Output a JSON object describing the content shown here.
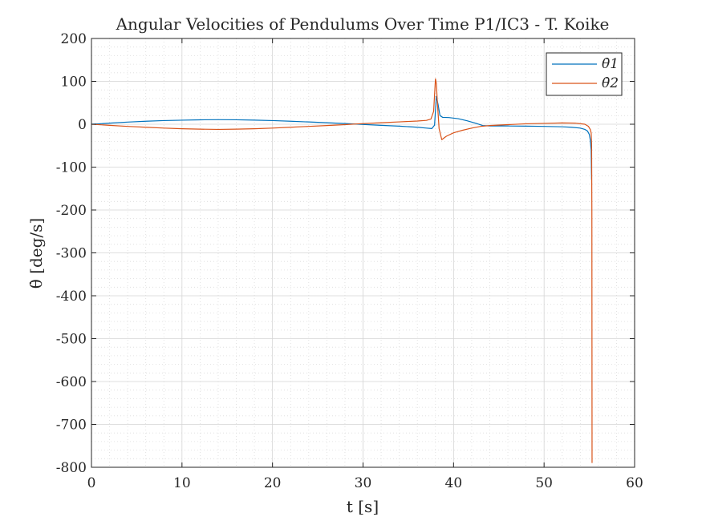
{
  "chart_data": {
    "type": "line",
    "title": "Angular Velocities of Pendulums Over Time P1/IC3 - T. Koike",
    "xlabel": "t [s]",
    "ylabel": "θ̇ [deg/s]",
    "xlim": [
      0,
      60
    ],
    "ylim": [
      -800,
      200
    ],
    "xticks": [
      0,
      10,
      20,
      30,
      40,
      50,
      60
    ],
    "yticks": [
      200,
      100,
      0,
      -100,
      -200,
      -300,
      -400,
      -500,
      -600,
      -700,
      -800
    ],
    "grid": "major and minor",
    "legend_position": "top-right",
    "series": [
      {
        "name": "θ̇1",
        "color": "#0072BD",
        "x": [
          0,
          2,
          4,
          6,
          8,
          10,
          12,
          14,
          16,
          18,
          20,
          22,
          24,
          26,
          28,
          30,
          32,
          34,
          36,
          37,
          37.6,
          37.9,
          38.1,
          38.3,
          38.5,
          38.8,
          39.5,
          40.5,
          41.5,
          42.5,
          43.2,
          44,
          46,
          48,
          50,
          52,
          53,
          54,
          54.5,
          54.8,
          55,
          55.1,
          55.2,
          55.25
        ],
        "y": [
          0,
          2.5,
          5,
          7,
          8.5,
          9.5,
          10.3,
          10.6,
          10.4,
          9.6,
          8.5,
          7,
          5.3,
          3.5,
          1.6,
          -0.5,
          -2.5,
          -4.5,
          -7,
          -9,
          -10,
          -2,
          65,
          45,
          20,
          16,
          15.5,
          13,
          8,
          2,
          -3,
          -4,
          -4,
          -4.5,
          -5,
          -6,
          -7,
          -9,
          -12,
          -16,
          -24,
          -36,
          -60,
          -130
        ]
      },
      {
        "name": "θ̇2",
        "color": "#D95319",
        "x": [
          0,
          2,
          4,
          6,
          8,
          10,
          12,
          14,
          16,
          18,
          20,
          22,
          24,
          26,
          28,
          30,
          32,
          34,
          36,
          37,
          37.5,
          37.8,
          38.0,
          38.1,
          38.2,
          38.4,
          38.7,
          39.2,
          40,
          41,
          42,
          43,
          44,
          46,
          48,
          50,
          52,
          53.5,
          54.5,
          54.9,
          55.1,
          55.2,
          55.25,
          55.28,
          55.3
        ],
        "y": [
          0,
          -2.5,
          -5,
          -7,
          -9,
          -10.5,
          -11.5,
          -12,
          -11.5,
          -10.5,
          -9,
          -7,
          -5,
          -3,
          -1,
          1.5,
          3.5,
          5.5,
          7.5,
          9,
          12,
          30,
          106,
          95,
          55,
          -10,
          -36,
          -28,
          -20,
          -14,
          -9,
          -5,
          -3,
          -1,
          1,
          2,
          3,
          2.5,
          0,
          -5,
          -12,
          -20,
          -45,
          -200,
          -790
        ]
      }
    ]
  }
}
